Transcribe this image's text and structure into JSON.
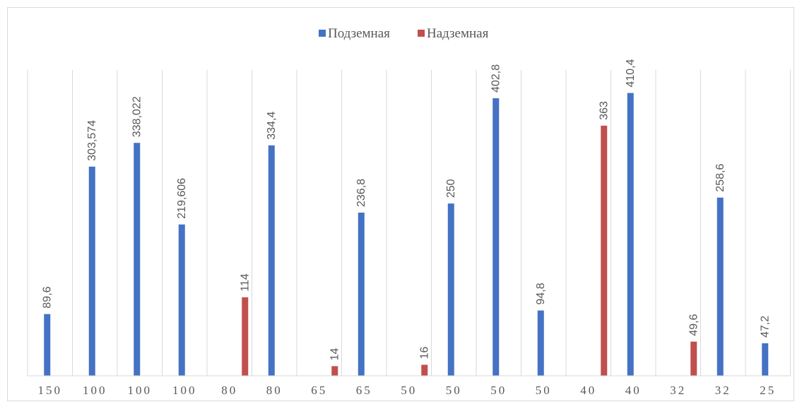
{
  "chart_data": {
    "type": "bar",
    "title": "",
    "xlabel": "",
    "ylabel": "",
    "categories": [
      "150",
      "100",
      "100",
      "100",
      "80",
      "80",
      "65",
      "65",
      "50",
      "50",
      "50",
      "50",
      "40",
      "40",
      "32",
      "32",
      "25"
    ],
    "series": [
      {
        "name": "Подземная",
        "color": "#4472C4",
        "values": [
          89.6,
          303.574,
          338.022,
          219.606,
          null,
          334.4,
          null,
          236.8,
          null,
          250,
          402.8,
          94.8,
          null,
          410.4,
          null,
          258.6,
          47.2
        ],
        "labels": [
          "89,6",
          "303,574",
          "338,022",
          "219,606",
          null,
          "334,4",
          null,
          "236,8",
          null,
          "250",
          "402,8",
          "94,8",
          null,
          "410,4",
          null,
          "258,6",
          "47,2"
        ]
      },
      {
        "name": "Надземная",
        "color": "#C0504D",
        "values": [
          null,
          null,
          null,
          null,
          114,
          null,
          14,
          null,
          16,
          null,
          null,
          null,
          363,
          null,
          49.6,
          null,
          null
        ],
        "labels": [
          null,
          null,
          null,
          null,
          "114",
          null,
          "14",
          null,
          "16",
          null,
          null,
          null,
          "363",
          null,
          "49,6",
          null,
          null
        ]
      }
    ],
    "ylim": [
      0,
      450
    ],
    "grid": "vertical",
    "legend_position": "top"
  }
}
